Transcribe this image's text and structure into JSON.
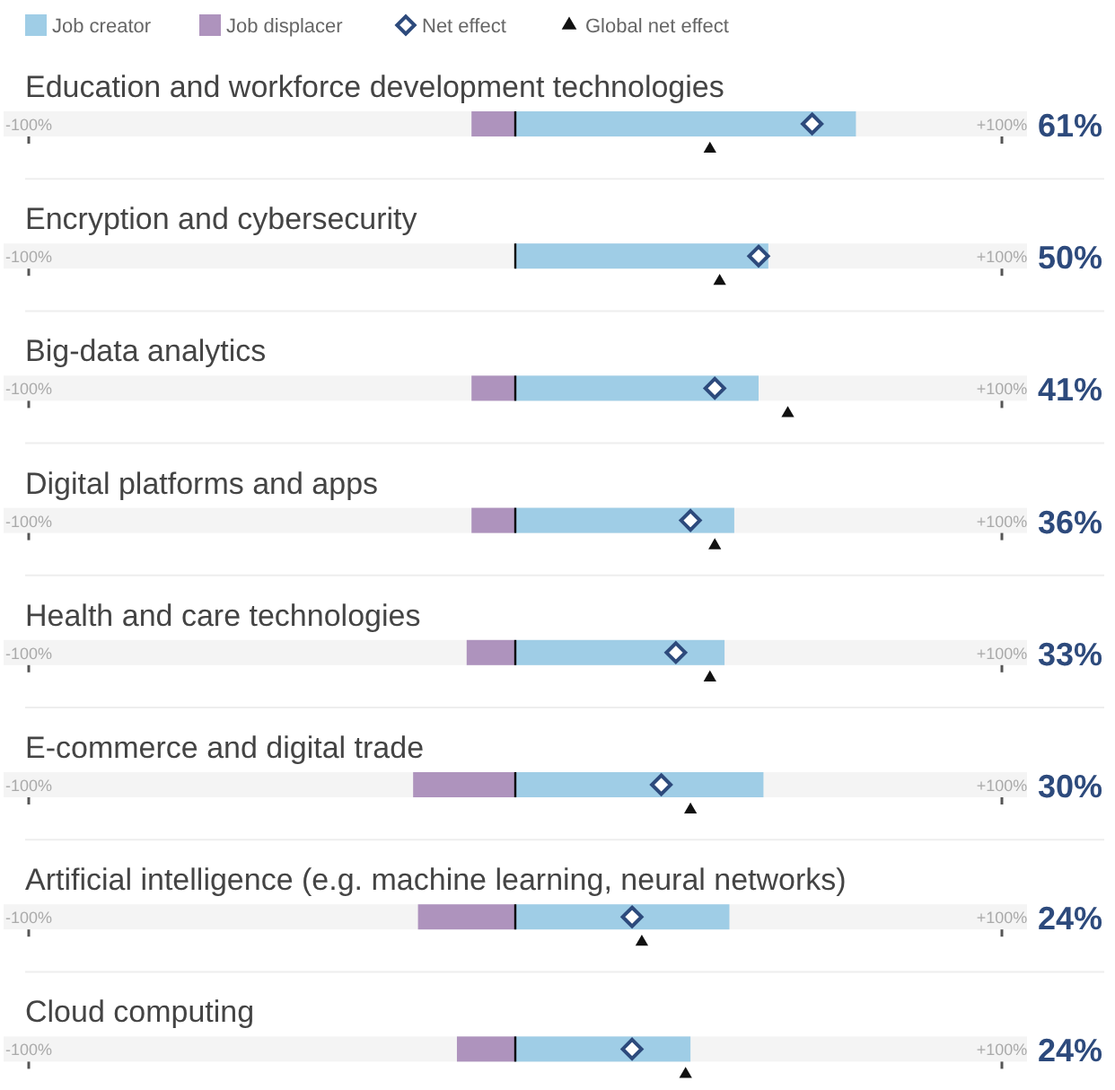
{
  "chart_data": {
    "type": "bar",
    "orientation": "horizontal",
    "stacked": true,
    "categories": [
      "Education and workforce development technologies",
      "Encryption and cybersecurity",
      "Big-data analytics",
      "Digital platforms and apps",
      "Health and care technologies",
      "E-commerce and digital trade",
      "Artificial intelligence (e.g. machine learning, neural networks)",
      "Cloud computing"
    ],
    "xlim": [
      -100,
      100
    ],
    "xticks": [
      {
        "value": -100,
        "label": "-100%"
      },
      {
        "value": 100,
        "label": "+100%"
      }
    ],
    "grid": false,
    "legend": "top left",
    "series": [
      {
        "name": "Job creator",
        "color": "#9fcde6",
        "values": [
          70,
          52,
          50,
          45,
          43,
          51,
          44,
          36
        ]
      },
      {
        "name": "Job displacer",
        "color": "#ae93bd",
        "values": [
          -9,
          0,
          -9,
          -9,
          -10,
          -21,
          -20,
          -12
        ]
      },
      {
        "name": "Net effect",
        "type": "scatter",
        "marker": "diamond",
        "color": "#2d4a7c",
        "values": [
          61,
          50,
          41,
          36,
          33,
          30,
          24,
          24
        ],
        "value_labels": [
          "61%",
          "50%",
          "41%",
          "36%",
          "33%",
          "30%",
          "24%",
          "24%"
        ]
      },
      {
        "name": "Global net effect",
        "type": "scatter",
        "marker": "triangle",
        "color": "#111111",
        "values": [
          40,
          42,
          56,
          41,
          40,
          36,
          26,
          35
        ]
      }
    ]
  }
}
